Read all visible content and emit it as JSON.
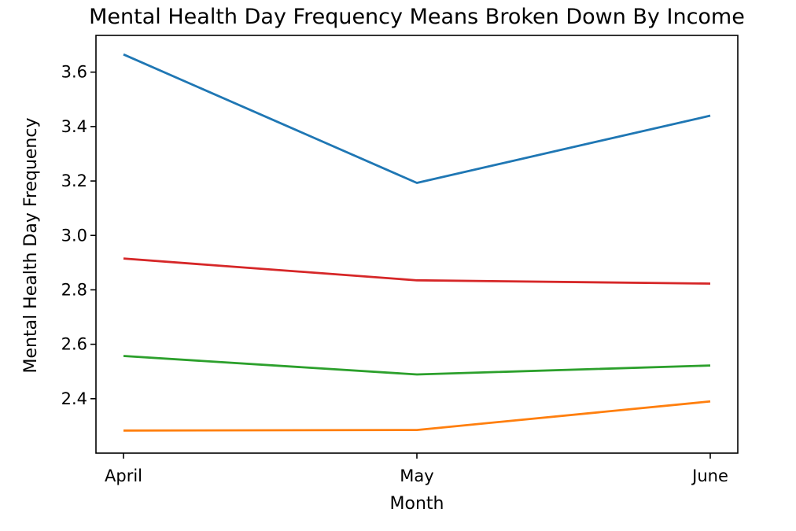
{
  "chart_data": {
    "type": "line",
    "title": "Mental Health Day Frequency Means Broken Down By Income",
    "xlabel": "Month",
    "ylabel": "Mental Health Day Frequency",
    "categories": [
      "April",
      "May",
      "June"
    ],
    "ylim": [
      2.2,
      3.735
    ],
    "yticks": [
      "2.4",
      "2.6",
      "2.8",
      "3.0",
      "3.2",
      "3.4",
      "3.6"
    ],
    "grid": false,
    "series": [
      {
        "color": "#1f77b4",
        "values": [
          3.665,
          3.193,
          3.44
        ]
      },
      {
        "color": "#ff7f0e",
        "values": [
          2.283,
          2.285,
          2.39
        ]
      },
      {
        "color": "#2ca02c",
        "values": [
          2.557,
          2.489,
          2.522
        ]
      },
      {
        "color": "#d62728",
        "values": [
          2.915,
          2.835,
          2.823
        ]
      }
    ]
  }
}
